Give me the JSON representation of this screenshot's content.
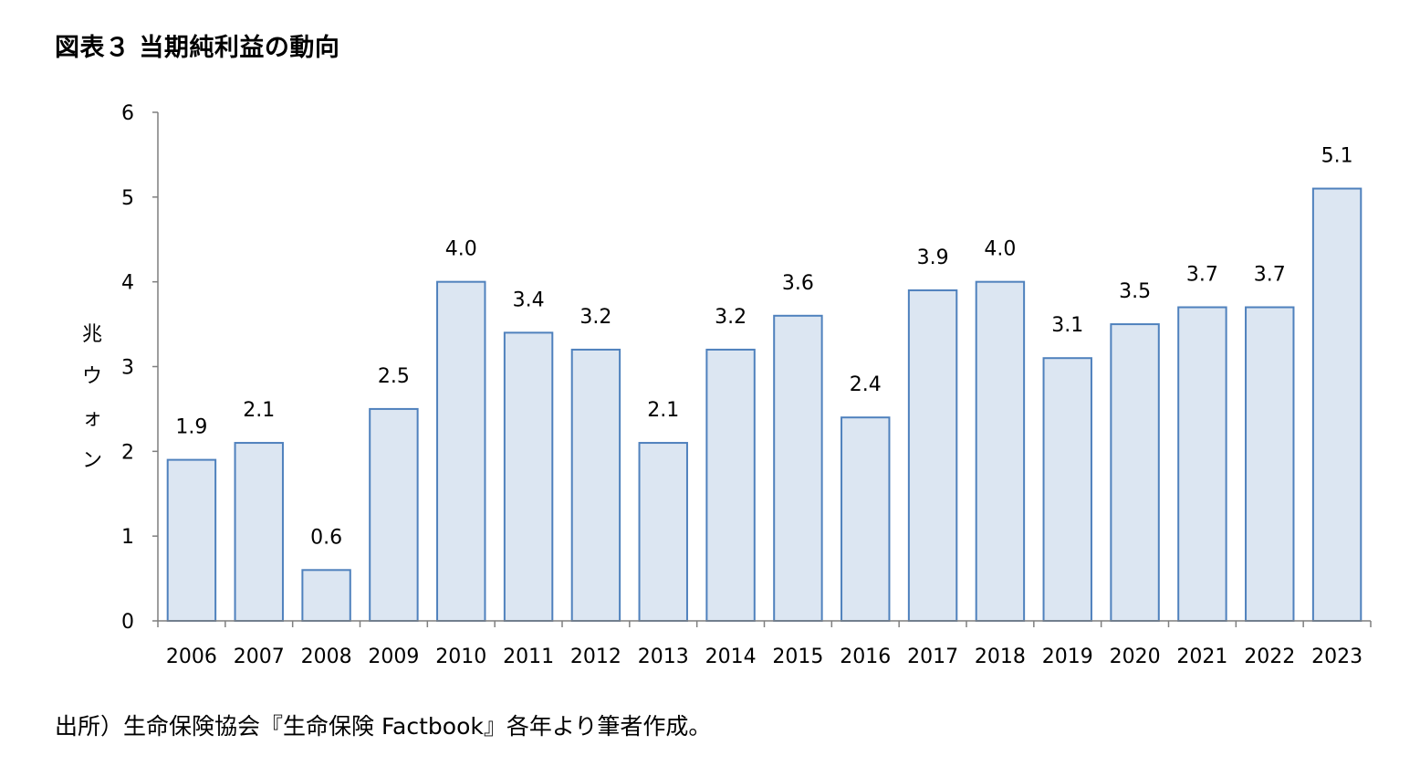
{
  "header": {
    "title": "図表３ 当期純利益の動向"
  },
  "footer": {
    "source": "出所）生命保険協会『生命保険 Factbook』各年より筆者作成。"
  },
  "chart_data": {
    "type": "bar",
    "title": "図表３ 当期純利益の動向",
    "ylabel": "兆ウォン",
    "xlabel": "",
    "categories": [
      "2006",
      "2007",
      "2008",
      "2009",
      "2010",
      "2011",
      "2012",
      "2013",
      "2014",
      "2015",
      "2016",
      "2017",
      "2018",
      "2019",
      "2020",
      "2021",
      "2022",
      "2023"
    ],
    "values": [
      1.9,
      2.1,
      0.6,
      2.5,
      4.0,
      3.4,
      3.2,
      2.1,
      3.2,
      3.6,
      2.4,
      3.9,
      4.0,
      3.1,
      3.5,
      3.7,
      3.7,
      5.1
    ],
    "data_labels": [
      "1.9",
      "2.1",
      "0.6",
      "2.5",
      "4.0",
      "3.4",
      "3.2",
      "2.1",
      "3.2",
      "3.6",
      "2.4",
      "3.9",
      "4.0",
      "3.1",
      "3.5",
      "3.7",
      "3.7",
      "5.1"
    ],
    "ylim": [
      0,
      6
    ],
    "yticks": [
      "0",
      "1",
      "2",
      "3",
      "4",
      "5",
      "6"
    ],
    "grid": false,
    "legend": "none",
    "colors": {
      "bar_fill": "#dce6f2",
      "bar_stroke": "#4f81bd",
      "axis": "#7f7f7f"
    }
  }
}
